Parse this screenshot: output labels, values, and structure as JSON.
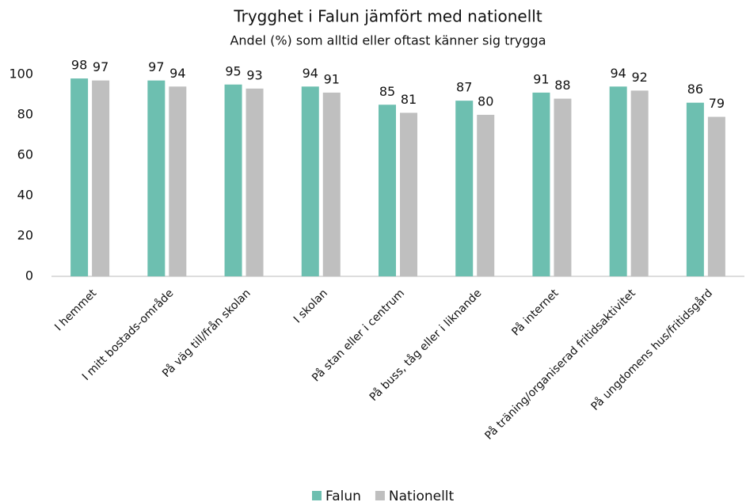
{
  "chart_data": {
    "type": "bar",
    "title": "Trygghet i Falun jämfört med nationellt",
    "subtitle": "Andel (%) som alltid eller oftast känner sig trygga",
    "categories": [
      "I hemmet",
      "I mitt bostads-område",
      "På väg till/från skolan",
      "I skolan",
      "På stan eller i centrum",
      "På buss, tåg eller i liknande",
      "På internet",
      "På träning/organiserad fritidsaktivitet",
      "På ungdomens hus/fritidsgård"
    ],
    "series": [
      {
        "name": "Falun",
        "color": "#6dbfb0",
        "values": [
          98,
          97,
          95,
          94,
          85,
          87,
          91,
          94,
          86
        ]
      },
      {
        "name": "Nationellt",
        "color": "#bfbfbf",
        "values": [
          97,
          94,
          93,
          91,
          81,
          80,
          88,
          92,
          79
        ]
      }
    ],
    "ylim": [
      0,
      100
    ],
    "yticks": [
      0,
      20,
      40,
      60,
      80,
      100
    ],
    "grid": false,
    "legend": "bottom"
  }
}
